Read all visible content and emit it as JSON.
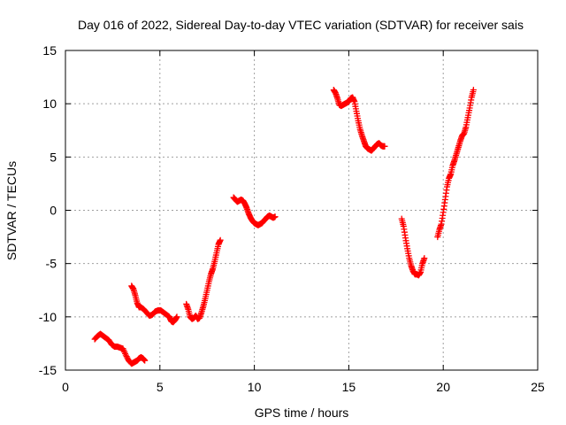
{
  "chart_data": {
    "type": "scatter",
    "title": "Day 016 of 2022, Sidereal Day-to-day VTEC variation (SDTVAR) for receiver sais",
    "xlabel": "GPS time / hours",
    "ylabel": "SDTVAR / TECUs",
    "xlim": [
      0,
      25
    ],
    "ylim": [
      -15,
      15
    ],
    "xticks": [
      0,
      5,
      10,
      15,
      20,
      25
    ],
    "yticks": [
      -15,
      -10,
      -5,
      0,
      5,
      10,
      15
    ],
    "grid": true,
    "legend": "none",
    "marker": "plus",
    "color": "#ff0000",
    "series": [
      {
        "x": [
          1.55,
          1.7,
          1.85,
          2.0,
          2.15,
          2.3,
          2.45,
          2.6,
          2.75,
          2.9,
          3.05,
          3.2,
          3.35,
          3.5,
          3.6,
          3.7,
          3.8,
          3.9,
          4.0,
          4.1,
          4.2
        ],
        "y": [
          -12.1,
          -11.8,
          -11.6,
          -11.8,
          -12.0,
          -12.2,
          -12.6,
          -12.8,
          -12.8,
          -12.9,
          -13.0,
          -13.6,
          -14.1,
          -14.4,
          -14.3,
          -14.2,
          -14.1,
          -13.9,
          -13.8,
          -13.9,
          -14.1
        ]
      },
      {
        "x": [
          3.5,
          3.6,
          3.7,
          3.8,
          3.9,
          4.0,
          4.15,
          4.3,
          4.45,
          4.6,
          4.75,
          4.9,
          5.05,
          5.2,
          5.35,
          5.5,
          5.6,
          5.7,
          5.8,
          5.9
        ],
        "y": [
          -7.1,
          -7.4,
          -8.0,
          -8.7,
          -9.1,
          -9.1,
          -9.3,
          -9.6,
          -9.9,
          -9.8,
          -9.5,
          -9.4,
          -9.4,
          -9.6,
          -9.8,
          -10.0,
          -10.4,
          -10.5,
          -10.3,
          -10.0
        ]
      },
      {
        "x": [
          6.4,
          6.5,
          6.6,
          6.7,
          6.8,
          6.9,
          7.0,
          7.1,
          7.2,
          7.3,
          7.4,
          7.5,
          7.6,
          7.7,
          7.8,
          7.9,
          8.0,
          8.1,
          8.2
        ],
        "y": [
          -8.8,
          -9.3,
          -10.0,
          -10.2,
          -10.1,
          -9.9,
          -10.2,
          -10.1,
          -9.6,
          -9.0,
          -8.3,
          -7.5,
          -6.7,
          -6.0,
          -5.5,
          -4.8,
          -4.0,
          -3.2,
          -2.8
        ]
      },
      {
        "x": [
          8.9,
          9.0,
          9.1,
          9.2,
          9.3,
          9.4,
          9.5,
          9.6,
          9.7,
          9.8,
          9.9,
          10.0,
          10.1,
          10.2,
          10.3,
          10.4,
          10.5,
          10.6,
          10.7,
          10.8,
          10.9,
          11.0,
          11.1
        ],
        "y": [
          1.2,
          1.0,
          0.8,
          0.9,
          1.0,
          0.9,
          0.6,
          0.2,
          -0.3,
          -0.7,
          -1.0,
          -1.2,
          -1.3,
          -1.4,
          -1.3,
          -1.2,
          -1.0,
          -0.8,
          -0.6,
          -0.5,
          -0.6,
          -0.7,
          -0.6
        ]
      },
      {
        "x": [
          14.2,
          14.3,
          14.4,
          14.5,
          14.6,
          14.7,
          14.8,
          14.9,
          15.0,
          15.1,
          15.2,
          15.3,
          15.4,
          15.5,
          15.6,
          15.7,
          15.8,
          15.9,
          16.0,
          16.1,
          16.2,
          16.3,
          16.4,
          16.5,
          16.6,
          16.7,
          16.8,
          16.9
        ],
        "y": [
          11.3,
          11.0,
          10.5,
          9.9,
          9.8,
          9.9,
          10.0,
          10.1,
          10.2,
          10.5,
          10.6,
          10.2,
          9.3,
          8.4,
          7.6,
          7.0,
          6.5,
          6.0,
          5.8,
          5.7,
          5.6,
          5.8,
          6.0,
          6.2,
          6.3,
          6.1,
          6.0,
          6.0
        ]
      },
      {
        "x": [
          17.8,
          17.9,
          18.0,
          18.1,
          18.2,
          18.3,
          18.4,
          18.5,
          18.6,
          18.7,
          18.8,
          18.9,
          19.0
        ],
        "y": [
          -0.8,
          -1.5,
          -2.6,
          -3.6,
          -4.5,
          -5.2,
          -5.7,
          -6.0,
          -6.0,
          -6.1,
          -5.8,
          -5.0,
          -4.5
        ]
      },
      {
        "x": [
          19.7,
          19.8,
          19.9,
          20.0,
          20.1,
          20.2,
          20.3,
          20.4,
          20.5,
          20.6,
          20.7,
          20.8,
          20.9,
          21.0,
          21.1,
          21.2,
          21.3,
          21.4,
          21.5,
          21.6
        ],
        "y": [
          -2.5,
          -1.8,
          -1.3,
          -0.2,
          1.0,
          2.2,
          3.0,
          3.4,
          4.2,
          4.7,
          5.3,
          5.9,
          6.5,
          7.0,
          7.2,
          7.8,
          8.7,
          9.6,
          10.6,
          11.3
        ]
      }
    ]
  }
}
